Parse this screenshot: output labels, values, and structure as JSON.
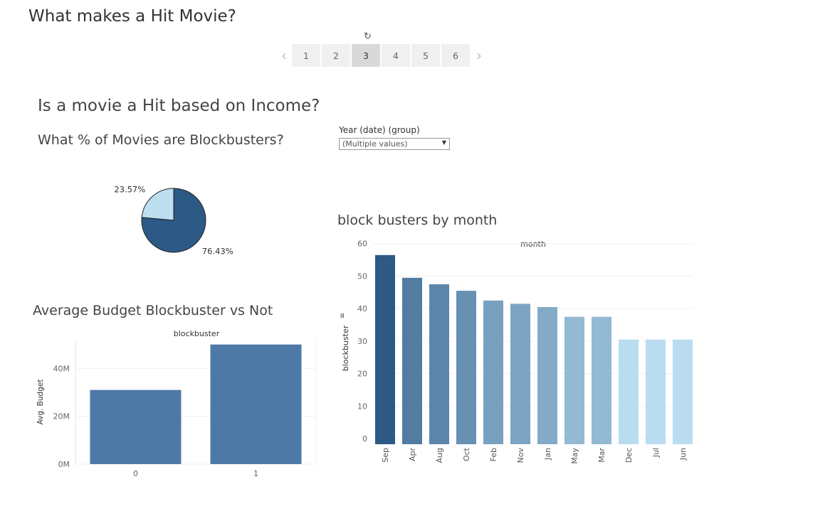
{
  "story": {
    "title": "What makes a Hit Movie?",
    "reset_icon": "refresh-icon",
    "pages": [
      "1",
      "2",
      "3",
      "4",
      "5",
      "6"
    ],
    "active_page": "3"
  },
  "section_title": "Is a movie a Hit based on Income?",
  "filter": {
    "label": "Year (date) (group)",
    "value": "(Multiple values)",
    "icon": "dropdown-arrow-icon"
  },
  "colors": {
    "dark_blue": "#2c5985",
    "mid_blue": "#4e79a7",
    "light_blue": "#b9dcf0"
  },
  "chart_data": [
    {
      "type": "pie",
      "title": "What % of Movies are Blockbusters?",
      "labels": [
        "23.57%",
        "76.43%"
      ],
      "values": [
        23.57,
        76.43
      ],
      "colors": [
        "#bddff0",
        "#2c5985"
      ]
    },
    {
      "type": "bar",
      "title": "Average Budget Blockbuster vs Not",
      "header": "blockbuster",
      "ylabel": "Avg. Budget",
      "categories": [
        "0",
        "1"
      ],
      "values": [
        31000000,
        50000000
      ],
      "yticks": [
        "0M",
        "20M",
        "40M"
      ],
      "ylim": [
        0,
        52000000
      ],
      "grid": true
    },
    {
      "type": "bar",
      "title": "block busters by month",
      "header": "month",
      "ylabel": "blockbuster",
      "categories": [
        "Sep",
        "Apr",
        "Aug",
        "Oct",
        "Feb",
        "Nov",
        "Jan",
        "May",
        "Mar",
        "Dec",
        "Jul",
        "Jun"
      ],
      "values": [
        58,
        51,
        49,
        47,
        44,
        43,
        42,
        39,
        39,
        32,
        32,
        32
      ],
      "yticks": [
        "0",
        "10",
        "20",
        "30",
        "40",
        "50",
        "60"
      ],
      "ylim": [
        0,
        60
      ],
      "grid": true,
      "color_scale": [
        "#b9dcf0",
        "#2c5985"
      ]
    }
  ]
}
